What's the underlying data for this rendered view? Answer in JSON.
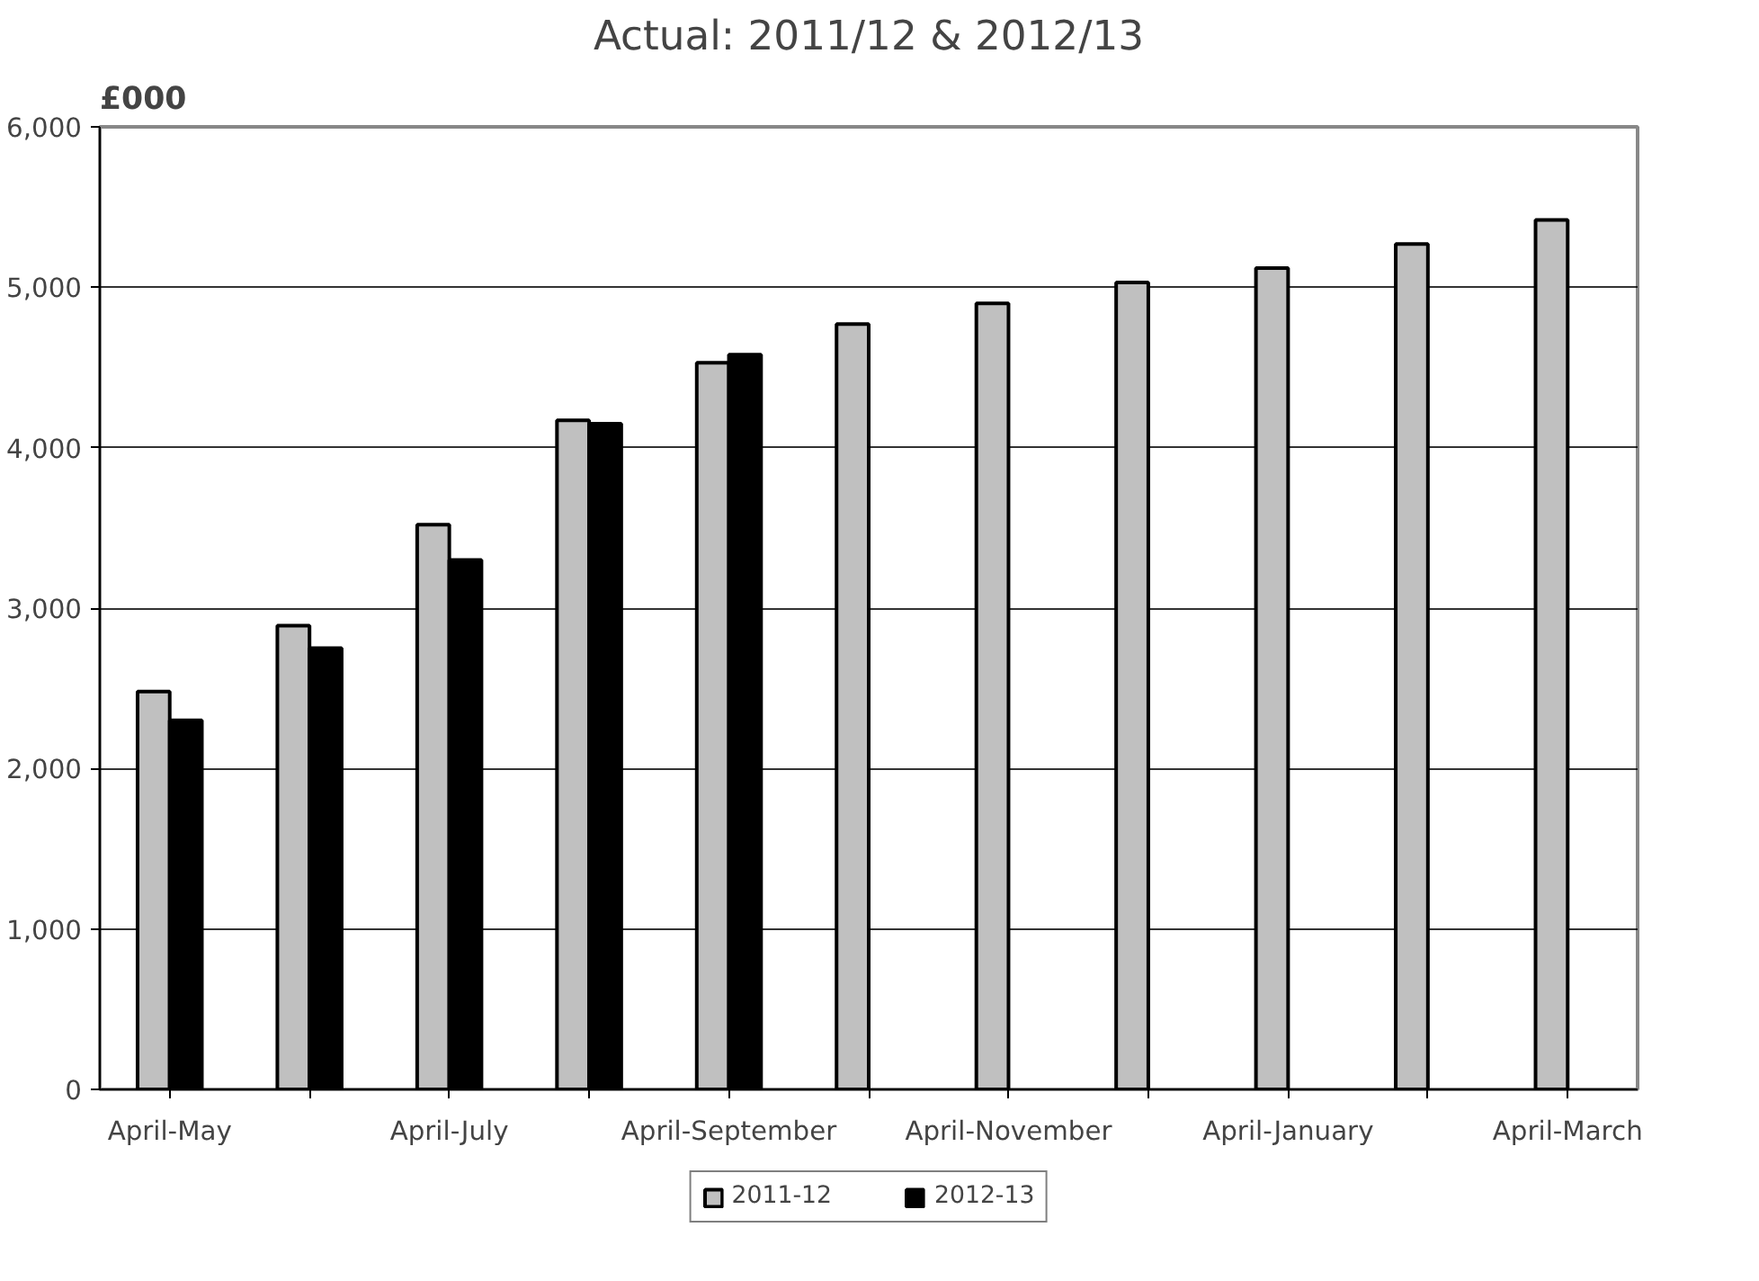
{
  "chart_data": {
    "type": "bar",
    "title": "Actual: 2011/12 & 2012/13",
    "ylabel": "£000",
    "categories": [
      "April-May",
      null,
      "April-July",
      null,
      "April-September",
      null,
      "April-November",
      null,
      "April-January",
      null,
      "April-March"
    ],
    "series": [
      {
        "name": "2011-12",
        "color": "#c0c0c0",
        "values": [
          2480,
          2890,
          3520,
          4170,
          4530,
          4770,
          4900,
          5030,
          5120,
          5270,
          5420
        ]
      },
      {
        "name": "2012-13",
        "color": "#000000",
        "values": [
          2300,
          2750,
          3300,
          4150,
          4580,
          null,
          null,
          null,
          null,
          null,
          null
        ]
      }
    ],
    "ylim": [
      0,
      6000
    ],
    "yticks": [
      {
        "value": 0,
        "label": "0"
      },
      {
        "value": 1000,
        "label": "1,000"
      },
      {
        "value": 2000,
        "label": "2,000"
      },
      {
        "value": 3000,
        "label": "3,000"
      },
      {
        "value": 4000,
        "label": "4,000"
      },
      {
        "value": 5000,
        "label": "5,000"
      },
      {
        "value": 6000,
        "label": "6,000"
      }
    ],
    "grid": "y",
    "legend": "bottom"
  }
}
